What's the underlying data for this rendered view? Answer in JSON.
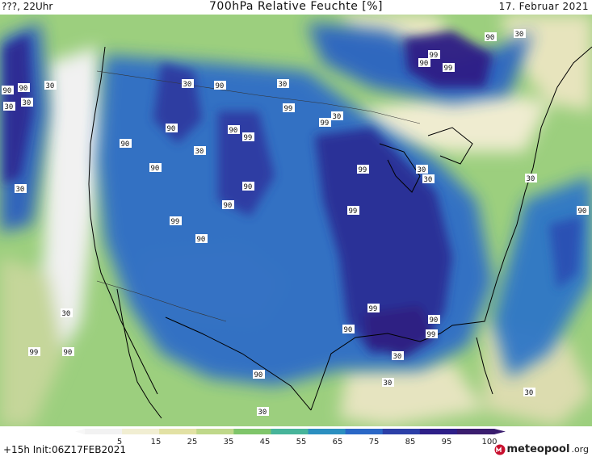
{
  "header": {
    "left": "???, 22Uhr",
    "title": "700hPa Relative Feuchte [%]",
    "date": "17. Februar 2021"
  },
  "map": {
    "contour_labels": [
      "90",
      "99",
      "30",
      "90",
      "99",
      "90",
      "30",
      "30",
      "99",
      "30",
      "99",
      "90",
      "90",
      "99",
      "90",
      "30",
      "90",
      "99",
      "30",
      "30",
      "90",
      "90",
      "99",
      "99",
      "30",
      "90",
      "90",
      "30",
      "30",
      "30",
      "99",
      "90",
      "90",
      "99",
      "30",
      "90",
      "90",
      "90",
      "30",
      "99",
      "90",
      "30",
      "30",
      "30",
      "30"
    ]
  },
  "legend": {
    "ticks": [
      "5",
      "15",
      "25",
      "35",
      "45",
      "55",
      "65",
      "75",
      "85",
      "95",
      "100"
    ],
    "colors": [
      "#f2f2f2",
      "#f1eed2",
      "#e2e1a4",
      "#bfd88a",
      "#7fc56a",
      "#47b49a",
      "#2b8fc0",
      "#2a67c6",
      "#2c3fa7",
      "#2e1f88",
      "#3a1d6e"
    ]
  },
  "footer": {
    "run": "+15h Init:06Z17FEB2021",
    "logo_text": "meteopool",
    "logo_tld": ".org"
  }
}
